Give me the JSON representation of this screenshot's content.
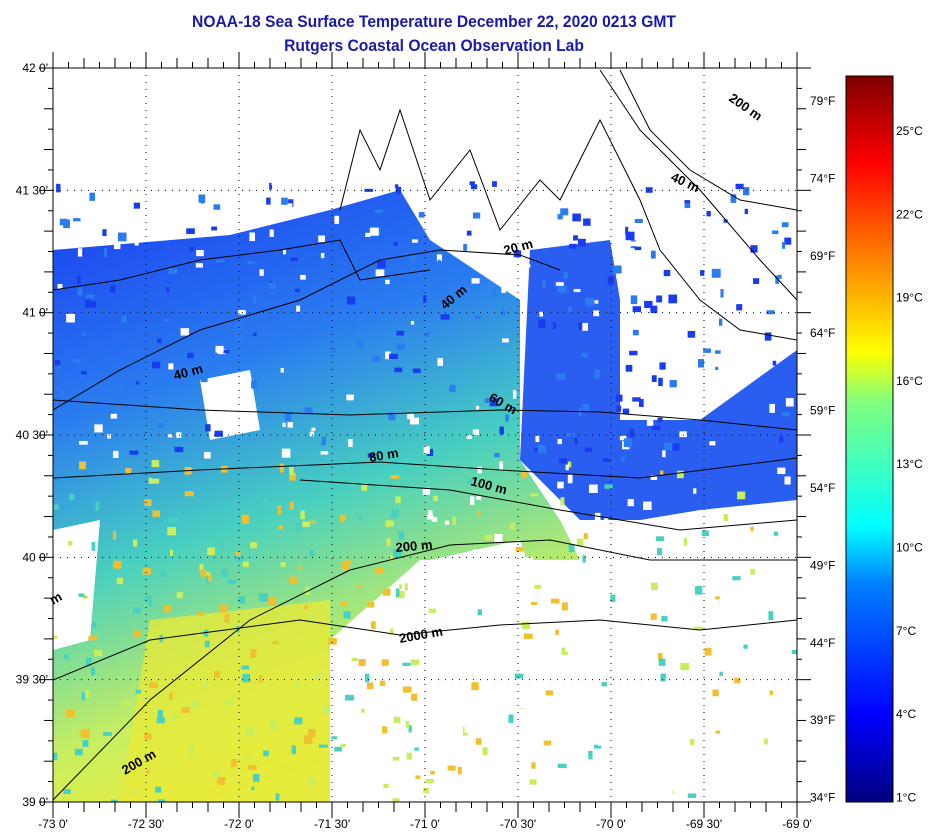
{
  "title": "NOAA-18 Sea Surface Temperature December 22, 2020 0213 GMT",
  "subtitle": "Rutgers Coastal Ocean Observation Lab",
  "map": {
    "lon_range": [
      -73,
      -69
    ],
    "lat_range": [
      39,
      42
    ],
    "lat_labels": [
      "42 0'",
      "41 30'",
      "41 0'",
      "40 30'",
      "40 0'",
      "39 30'",
      "39 0'"
    ],
    "lon_labels": [
      "-73 0'",
      "-72 30'",
      "-72 0'",
      "-71 30'",
      "-71 0'",
      "-70 30'",
      "-70 0'",
      "-69 30'",
      "-69 0'"
    ],
    "fahrenheit_labels": [
      "79°F",
      "74°F",
      "69°F",
      "64°F",
      "59°F",
      "54°F",
      "49°F",
      "44°F",
      "39°F",
      "34°F"
    ],
    "contour_labels": [
      "200 m",
      "40 m",
      "20 m",
      "40 m",
      "40 m",
      "60 m",
      "80 m",
      "100 m",
      "200 m",
      "2000 m",
      "200 m",
      "m"
    ]
  },
  "colorbar": {
    "celsius_labels": [
      "25°C",
      "22°C",
      "19°C",
      "16°C",
      "13°C",
      "10°C",
      "7°C",
      "4°C",
      "1°C"
    ],
    "range_c": [
      1,
      28
    ],
    "colors": [
      "#00007f",
      "#0000ff",
      "#007fff",
      "#00ffff",
      "#7fff7f",
      "#ffff00",
      "#ff7f00",
      "#ff0000",
      "#7f0000"
    ]
  }
}
